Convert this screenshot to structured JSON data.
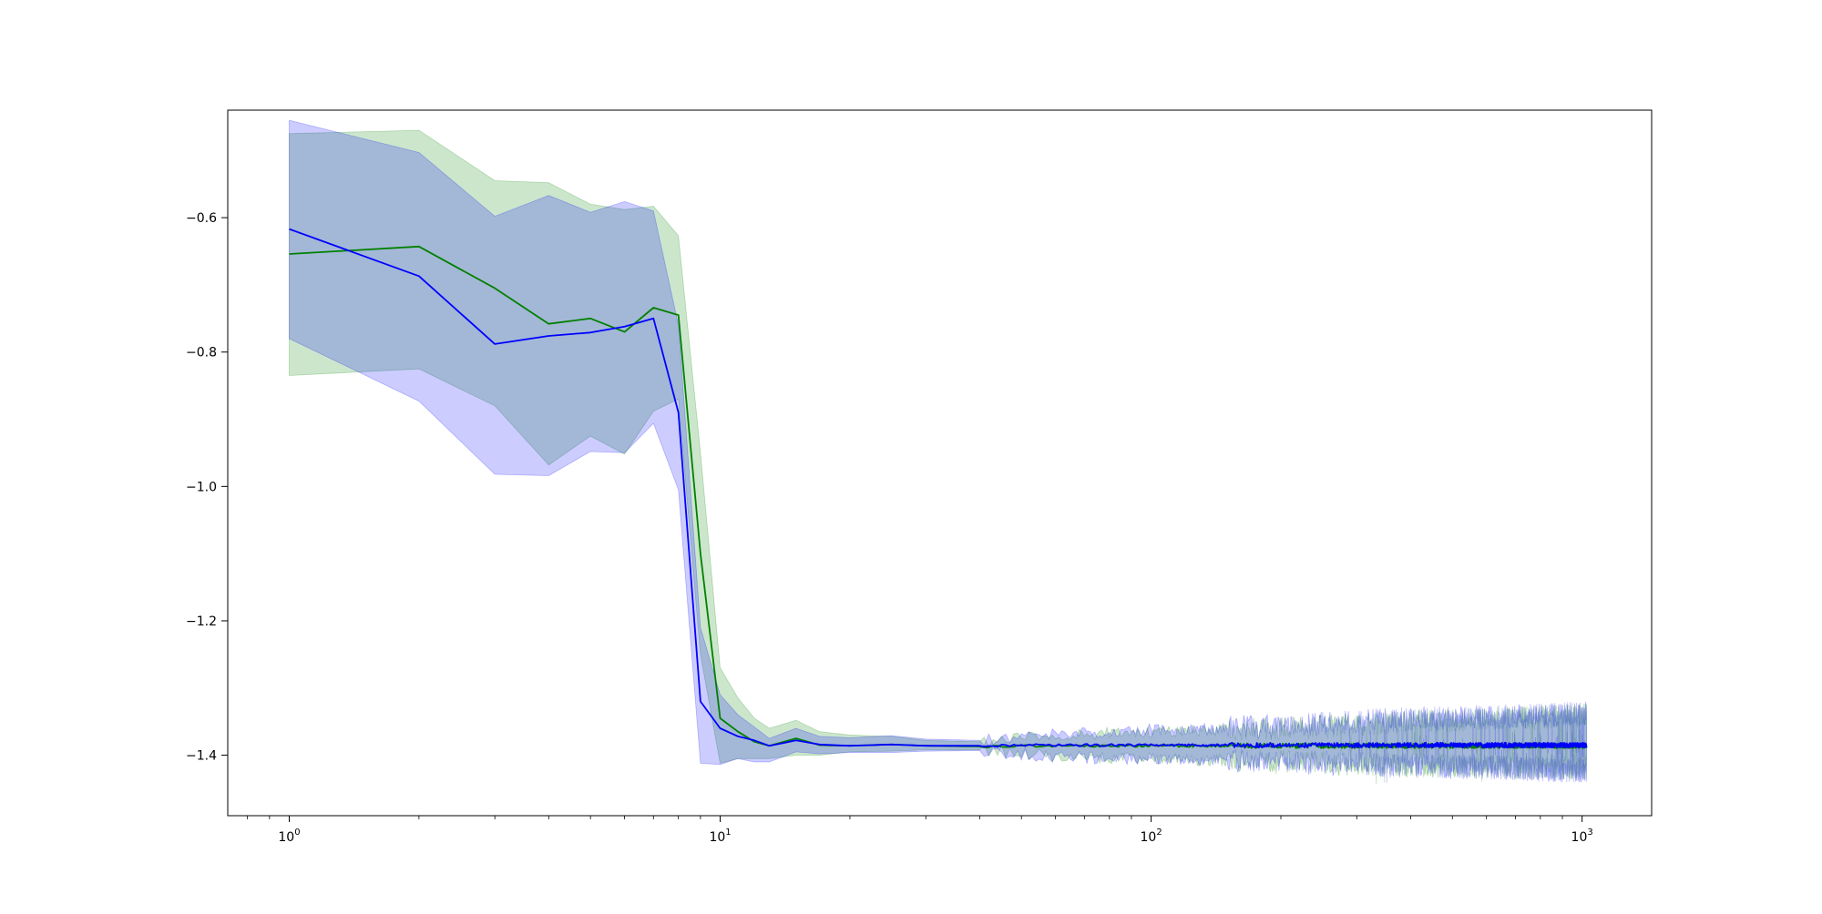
{
  "chart_data": {
    "type": "line",
    "title": "",
    "xlabel": "",
    "ylabel": "",
    "xscale": "log",
    "xlim": [
      0.72,
      1450
    ],
    "ylim": [
      -1.49,
      -0.44
    ],
    "grid": false,
    "legend": "none",
    "x_ticks": [
      {
        "value": 1,
        "base": "10",
        "exp": "0"
      },
      {
        "value": 10,
        "base": "10",
        "exp": "1"
      },
      {
        "value": 100,
        "base": "10",
        "exp": "2"
      },
      {
        "value": 1000,
        "base": "10",
        "exp": "3"
      }
    ],
    "y_ticks": [
      {
        "value": -0.6,
        "label": "−0.6"
      },
      {
        "value": -0.8,
        "label": "−0.8"
      },
      {
        "value": -1.0,
        "label": "−1.0"
      },
      {
        "value": -1.2,
        "label": "−1.2"
      },
      {
        "value": -1.4,
        "label": "−1.4"
      }
    ],
    "series": [
      {
        "color": "#008000",
        "band_color": "#008000",
        "band_opacity": 0.2,
        "x": [
          1,
          2,
          3,
          4,
          5,
          6,
          7,
          8,
          9,
          10,
          11,
          12,
          13,
          15,
          17,
          20,
          25,
          30,
          40,
          60,
          100,
          200,
          400,
          700,
          1024
        ],
        "mean": [
          -0.654,
          -0.643,
          -0.705,
          -0.758,
          -0.75,
          -0.77,
          -0.734,
          -0.745,
          -1.1,
          -1.345,
          -1.365,
          -1.38,
          -1.386,
          -1.375,
          -1.385,
          -1.386,
          -1.384,
          -1.386,
          -1.387,
          -1.386,
          -1.386,
          -1.386,
          -1.386,
          -1.386,
          -1.386
        ],
        "upper": [
          -0.475,
          -0.47,
          -0.545,
          -0.548,
          -0.58,
          -0.588,
          -0.583,
          -0.627,
          -0.95,
          -1.27,
          -1.315,
          -1.345,
          -1.36,
          -1.348,
          -1.365,
          -1.37,
          -1.372,
          -1.378,
          -1.38,
          -1.37,
          -1.365,
          -1.36,
          -1.35,
          -1.345,
          -1.34
        ],
        "lower": [
          -0.835,
          -0.825,
          -0.88,
          -0.968,
          -0.925,
          -0.952,
          -0.888,
          -0.87,
          -1.25,
          -1.412,
          -1.405,
          -1.405,
          -1.405,
          -1.4,
          -1.4,
          -1.395,
          -1.394,
          -1.392,
          -1.392,
          -1.402,
          -1.405,
          -1.41,
          -1.415,
          -1.418,
          -1.42
        ]
      },
      {
        "color": "#0000ff",
        "band_color": "#0000ff",
        "band_opacity": 0.2,
        "x": [
          1,
          2,
          3,
          4,
          5,
          6,
          7,
          8,
          9,
          10,
          11,
          12,
          13,
          15,
          17,
          20,
          25,
          30,
          40,
          60,
          100,
          200,
          400,
          700,
          1024
        ],
        "mean": [
          -0.617,
          -0.687,
          -0.788,
          -0.776,
          -0.771,
          -0.762,
          -0.75,
          -0.89,
          -1.32,
          -1.36,
          -1.372,
          -1.378,
          -1.386,
          -1.378,
          -1.384,
          -1.386,
          -1.384,
          -1.386,
          -1.386,
          -1.385,
          -1.385,
          -1.385,
          -1.385,
          -1.385,
          -1.385
        ],
        "upper": [
          -0.455,
          -0.503,
          -0.598,
          -0.567,
          -0.592,
          -0.576,
          -0.59,
          -0.76,
          -1.21,
          -1.31,
          -1.34,
          -1.358,
          -1.375,
          -1.36,
          -1.372,
          -1.374,
          -1.371,
          -1.376,
          -1.378,
          -1.368,
          -1.362,
          -1.356,
          -1.346,
          -1.342,
          -1.338
        ],
        "lower": [
          -0.78,
          -0.873,
          -0.982,
          -0.984,
          -0.948,
          -0.95,
          -0.906,
          -1.005,
          -1.412,
          -1.414,
          -1.405,
          -1.41,
          -1.41,
          -1.395,
          -1.398,
          -1.396,
          -1.396,
          -1.394,
          -1.393,
          -1.403,
          -1.406,
          -1.41,
          -1.416,
          -1.42,
          -1.424
        ]
      }
    ]
  }
}
